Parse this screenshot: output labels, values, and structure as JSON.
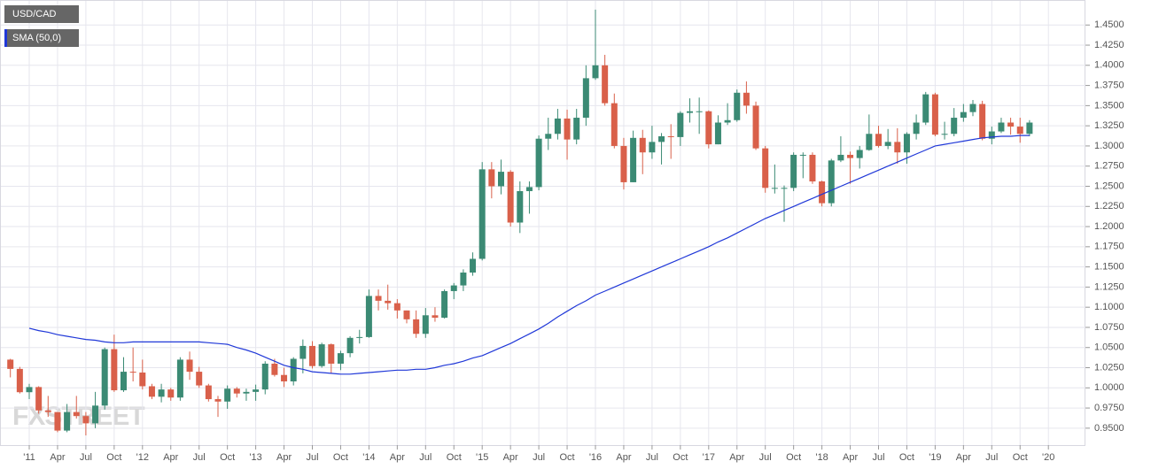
{
  "chart_data": {
    "type": "candlestick",
    "watermark": "FXSTREET",
    "x": [
      "2010-11",
      "2010-12",
      "2011-01",
      "2011-02",
      "2011-03",
      "2011-04",
      "2011-05",
      "2011-06",
      "2011-07",
      "2011-08",
      "2011-09",
      "2011-10",
      "2011-11",
      "2011-12",
      "2012-01",
      "2012-02",
      "2012-03",
      "2012-04",
      "2012-05",
      "2012-06",
      "2012-07",
      "2012-08",
      "2012-09",
      "2012-10",
      "2012-11",
      "2012-12",
      "2013-01",
      "2013-02",
      "2013-03",
      "2013-04",
      "2013-05",
      "2013-06",
      "2013-07",
      "2013-08",
      "2013-09",
      "2013-10",
      "2013-11",
      "2013-12",
      "2014-01",
      "2014-02",
      "2014-03",
      "2014-04",
      "2014-05",
      "2014-06",
      "2014-07",
      "2014-08",
      "2014-09",
      "2014-10",
      "2014-11",
      "2014-12",
      "2015-01",
      "2015-02",
      "2015-03",
      "2015-04",
      "2015-05",
      "2015-06",
      "2015-07",
      "2015-08",
      "2015-09",
      "2015-10",
      "2015-11",
      "2015-12",
      "2016-01",
      "2016-02",
      "2016-03",
      "2016-04",
      "2016-05",
      "2016-06",
      "2016-07",
      "2016-08",
      "2016-09",
      "2016-10",
      "2016-11",
      "2016-12",
      "2017-01",
      "2017-02",
      "2017-03",
      "2017-04",
      "2017-05",
      "2017-06",
      "2017-07",
      "2017-08",
      "2017-09",
      "2017-10",
      "2017-11",
      "2017-12",
      "2018-01",
      "2018-02",
      "2018-03",
      "2018-04",
      "2018-05",
      "2018-06",
      "2018-07",
      "2018-08",
      "2018-09",
      "2018-10",
      "2018-11",
      "2018-12",
      "2019-01",
      "2019-02",
      "2019-03",
      "2019-04",
      "2019-05",
      "2019-06",
      "2019-07",
      "2019-08",
      "2019-09",
      "2019-10",
      "2019-11"
    ],
    "series": [
      {
        "name": "USD/CAD",
        "up_color": "#3b8a74",
        "down_color": "#d9604a",
        "open": [
          1.035,
          1.0235,
          0.9946,
          1.001,
          0.972,
          0.97,
          0.947,
          0.97,
          0.965,
          0.956,
          0.978,
          1.048,
          0.997,
          1.02,
          1.019,
          1.002,
          0.989,
          0.998,
          0.988,
          1.035,
          1.02,
          1.003,
          0.986,
          0.983,
          0.999,
          0.993,
          0.995,
          0.998,
          1.03,
          1.016,
          1.008,
          1.036,
          1.052,
          1.027,
          1.054,
          1.03,
          1.043,
          1.062,
          1.063,
          1.114,
          1.108,
          1.105,
          1.096,
          1.085,
          1.067,
          1.09,
          1.087,
          1.12,
          1.127,
          1.143,
          1.16,
          1.271,
          1.25,
          1.268,
          1.205,
          1.244,
          1.249,
          1.309,
          1.315,
          1.334,
          1.308,
          1.335,
          1.384,
          1.4,
          1.353,
          1.3,
          1.255,
          1.31,
          1.292,
          1.305,
          1.312,
          1.311,
          1.341,
          1.343,
          1.343,
          1.302,
          1.329,
          1.332,
          1.366,
          1.35,
          1.297,
          1.248,
          1.248,
          1.248,
          1.289,
          1.289,
          1.256,
          1.229,
          1.282,
          1.289,
          1.285,
          1.295,
          1.315,
          1.3,
          1.305,
          1.292,
          1.315,
          1.329,
          1.364,
          1.314,
          1.315,
          1.335,
          1.342,
          1.352,
          1.309,
          1.318,
          1.329,
          1.324,
          1.315
        ],
        "high": [
          1.036,
          1.026,
          1.005,
          1.002,
          0.99,
          0.97,
          0.98,
          0.99,
          0.97,
          0.995,
          1.05,
          1.066,
          1.038,
          1.05,
          1.035,
          1.005,
          1.005,
          1.0,
          1.038,
          1.045,
          1.026,
          1.005,
          0.99,
          1.003,
          1.001,
          0.999,
          1.004,
          1.033,
          1.036,
          1.025,
          1.038,
          1.06,
          1.058,
          1.056,
          1.055,
          1.046,
          1.064,
          1.072,
          1.122,
          1.122,
          1.128,
          1.11,
          1.096,
          1.096,
          1.099,
          1.1,
          1.122,
          1.13,
          1.147,
          1.168,
          1.28,
          1.28,
          1.283,
          1.27,
          1.256,
          1.256,
          1.313,
          1.335,
          1.346,
          1.345,
          1.346,
          1.4,
          1.469,
          1.413,
          1.365,
          1.31,
          1.319,
          1.32,
          1.325,
          1.316,
          1.327,
          1.343,
          1.359,
          1.36,
          1.344,
          1.338,
          1.353,
          1.37,
          1.38,
          1.355,
          1.3,
          1.277,
          1.251,
          1.292,
          1.292,
          1.292,
          1.257,
          1.284,
          1.312,
          1.293,
          1.3,
          1.339,
          1.325,
          1.321,
          1.322,
          1.317,
          1.339,
          1.367,
          1.366,
          1.33,
          1.347,
          1.352,
          1.357,
          1.356,
          1.324,
          1.335,
          1.335,
          1.335,
          1.332
        ],
        "low": [
          1.013,
          0.993,
          0.986,
          0.968,
          0.964,
          0.945,
          0.945,
          0.962,
          0.941,
          0.95,
          0.973,
          0.995,
          0.995,
          1.008,
          0.998,
          0.986,
          0.982,
          0.984,
          0.984,
          1.01,
          1.0,
          0.983,
          0.964,
          0.974,
          0.988,
          0.984,
          0.984,
          0.992,
          1.014,
          1.001,
          1.003,
          1.018,
          1.024,
          1.025,
          1.018,
          1.022,
          1.038,
          1.055,
          1.062,
          1.096,
          1.097,
          1.086,
          1.08,
          1.062,
          1.062,
          1.082,
          1.086,
          1.11,
          1.12,
          1.139,
          1.158,
          1.235,
          1.24,
          1.2,
          1.192,
          1.216,
          1.245,
          1.295,
          1.308,
          1.283,
          1.302,
          1.325,
          1.382,
          1.35,
          1.297,
          1.246,
          1.255,
          1.265,
          1.284,
          1.277,
          1.284,
          1.3,
          1.329,
          1.315,
          1.297,
          1.302,
          1.326,
          1.33,
          1.34,
          1.295,
          1.242,
          1.241,
          1.206,
          1.244,
          1.26,
          1.253,
          1.225,
          1.225,
          1.28,
          1.253,
          1.272,
          1.294,
          1.298,
          1.296,
          1.278,
          1.278,
          1.308,
          1.326,
          1.312,
          1.308,
          1.312,
          1.33,
          1.337,
          1.307,
          1.302,
          1.316,
          1.314,
          1.304,
          1.312
        ],
        "close": [
          1.0235,
          0.9946,
          1.001,
          0.972,
          0.97,
          0.947,
          0.97,
          0.965,
          0.956,
          0.978,
          1.048,
          0.997,
          1.02,
          1.019,
          1.002,
          0.989,
          0.998,
          0.988,
          1.035,
          1.02,
          1.003,
          0.986,
          0.983,
          0.999,
          0.993,
          0.995,
          0.998,
          1.03,
          1.016,
          1.008,
          1.036,
          1.052,
          1.027,
          1.054,
          1.03,
          1.043,
          1.062,
          1.063,
          1.114,
          1.108,
          1.105,
          1.096,
          1.085,
          1.067,
          1.09,
          1.087,
          1.12,
          1.127,
          1.143,
          1.16,
          1.271,
          1.25,
          1.268,
          1.205,
          1.244,
          1.249,
          1.309,
          1.315,
          1.334,
          1.308,
          1.335,
          1.384,
          1.4,
          1.353,
          1.3,
          1.255,
          1.31,
          1.292,
          1.305,
          1.312,
          1.311,
          1.341,
          1.343,
          1.343,
          1.302,
          1.329,
          1.332,
          1.366,
          1.35,
          1.297,
          1.248,
          1.248,
          1.248,
          1.289,
          1.289,
          1.256,
          1.229,
          1.282,
          1.289,
          1.285,
          1.295,
          1.315,
          1.3,
          1.305,
          1.292,
          1.315,
          1.329,
          1.364,
          1.314,
          1.315,
          1.335,
          1.342,
          1.352,
          1.309,
          1.318,
          1.329,
          1.324,
          1.315,
          1.329
        ]
      },
      {
        "name": "SMA (50,0)",
        "color": "#2038d8",
        "values": [
          null,
          null,
          1.074,
          1.071,
          1.069,
          1.066,
          1.064,
          1.062,
          1.06,
          1.059,
          1.057,
          1.056,
          1.056,
          1.057,
          1.057,
          1.057,
          1.057,
          1.057,
          1.057,
          1.057,
          1.057,
          1.056,
          1.055,
          1.054,
          1.05,
          1.047,
          1.043,
          1.038,
          1.033,
          1.028,
          1.025,
          1.023,
          1.02,
          1.019,
          1.018,
          1.017,
          1.017,
          1.018,
          1.019,
          1.02,
          1.021,
          1.022,
          1.022,
          1.023,
          1.023,
          1.025,
          1.028,
          1.03,
          1.033,
          1.037,
          1.04,
          1.045,
          1.05,
          1.055,
          1.061,
          1.067,
          1.073,
          1.08,
          1.088,
          1.095,
          1.102,
          1.108,
          1.115,
          1.12,
          1.125,
          1.13,
          1.135,
          1.14,
          1.145,
          1.15,
          1.155,
          1.16,
          1.165,
          1.17,
          1.175,
          1.181,
          1.186,
          1.192,
          1.198,
          1.204,
          1.21,
          1.215,
          1.22,
          1.225,
          1.23,
          1.235,
          1.24,
          1.245,
          1.25,
          1.255,
          1.26,
          1.265,
          1.27,
          1.275,
          1.28,
          1.285,
          1.29,
          1.295,
          1.3,
          1.302,
          1.304,
          1.306,
          1.308,
          1.31,
          1.311,
          1.312,
          1.312,
          1.313,
          1.313
        ]
      }
    ],
    "ylim": [
      0.929,
      1.481
    ],
    "yticks": [
      {
        "value": 0.95,
        "label": "0.9500"
      },
      {
        "value": 0.975,
        "label": "0.9750"
      },
      {
        "value": 1.0,
        "label": "1.0000"
      },
      {
        "value": 1.025,
        "label": "1.0250"
      },
      {
        "value": 1.05,
        "label": "1.0500"
      },
      {
        "value": 1.075,
        "label": "1.0750"
      },
      {
        "value": 1.1,
        "label": "1.1000"
      },
      {
        "value": 1.125,
        "label": "1.1250"
      },
      {
        "value": 1.15,
        "label": "1.1500"
      },
      {
        "value": 1.175,
        "label": "1.1750"
      },
      {
        "value": 1.2,
        "label": "1.2000"
      },
      {
        "value": 1.225,
        "label": "1.2250"
      },
      {
        "value": 1.25,
        "label": "1.2500"
      },
      {
        "value": 1.275,
        "label": "1.2750"
      },
      {
        "value": 1.3,
        "label": "1.3000"
      },
      {
        "value": 1.325,
        "label": "1.3250"
      },
      {
        "value": 1.35,
        "label": "1.3500"
      },
      {
        "value": 1.375,
        "label": "1.3750"
      },
      {
        "value": 1.4,
        "label": "1.4000"
      },
      {
        "value": 1.425,
        "label": "1.4250"
      },
      {
        "value": 1.45,
        "label": "1.4500"
      }
    ],
    "xticks": [
      {
        "value": "2011-01",
        "label": "'11"
      },
      {
        "value": "2011-04",
        "label": "Apr"
      },
      {
        "value": "2011-07",
        "label": "Jul"
      },
      {
        "value": "2011-10",
        "label": "Oct"
      },
      {
        "value": "2012-01",
        "label": "'12"
      },
      {
        "value": "2012-04",
        "label": "Apr"
      },
      {
        "value": "2012-07",
        "label": "Jul"
      },
      {
        "value": "2012-10",
        "label": "Oct"
      },
      {
        "value": "2013-01",
        "label": "'13"
      },
      {
        "value": "2013-04",
        "label": "Apr"
      },
      {
        "value": "2013-07",
        "label": "Jul"
      },
      {
        "value": "2013-10",
        "label": "Oct"
      },
      {
        "value": "2014-01",
        "label": "'14"
      },
      {
        "value": "2014-04",
        "label": "Apr"
      },
      {
        "value": "2014-07",
        "label": "Jul"
      },
      {
        "value": "2014-10",
        "label": "Oct"
      },
      {
        "value": "2015-01",
        "label": "'15"
      },
      {
        "value": "2015-04",
        "label": "Apr"
      },
      {
        "value": "2015-07",
        "label": "Jul"
      },
      {
        "value": "2015-10",
        "label": "Oct"
      },
      {
        "value": "2016-01",
        "label": "'16"
      },
      {
        "value": "2016-04",
        "label": "Apr"
      },
      {
        "value": "2016-07",
        "label": "Jul"
      },
      {
        "value": "2016-10",
        "label": "Oct"
      },
      {
        "value": "2017-01",
        "label": "'17"
      },
      {
        "value": "2017-04",
        "label": "Apr"
      },
      {
        "value": "2017-07",
        "label": "Jul"
      },
      {
        "value": "2017-10",
        "label": "Oct"
      },
      {
        "value": "2018-01",
        "label": "'18"
      },
      {
        "value": "2018-04",
        "label": "Apr"
      },
      {
        "value": "2018-07",
        "label": "Jul"
      },
      {
        "value": "2018-10",
        "label": "Oct"
      },
      {
        "value": "2019-01",
        "label": "'19"
      },
      {
        "value": "2019-04",
        "label": "Apr"
      },
      {
        "value": "2019-07",
        "label": "Jul"
      },
      {
        "value": "2019-10",
        "label": "Oct"
      },
      {
        "value": "2020-01",
        "label": "'20"
      }
    ],
    "grid": true
  }
}
